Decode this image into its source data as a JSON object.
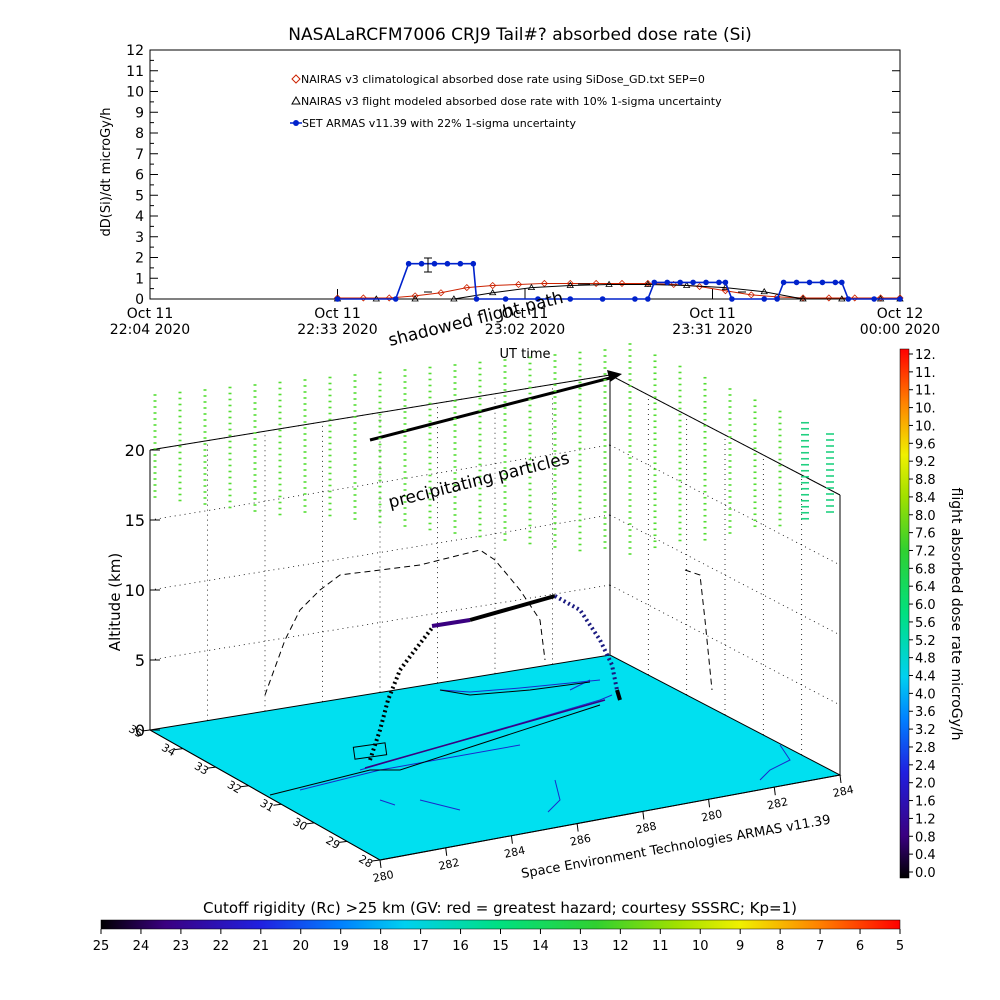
{
  "title": "NASALaRCFM7006  CRJ9 Tail#? absorbed dose rate (Si)",
  "top_chart": {
    "ylabel": "dD(Si)/dt microGy/h",
    "xlabel": "UT time",
    "yticks": [
      "0",
      "1",
      "2",
      "3",
      "4",
      "5",
      "6",
      "7",
      "8",
      "9",
      "10",
      "11",
      "12"
    ],
    "xticks": [
      {
        "line1": "Oct 11",
        "line2": "22:04 2020"
      },
      {
        "line1": "Oct 11",
        "line2": "22:33 2020"
      },
      {
        "line1": "Oct 11",
        "line2": "23:02 2020"
      },
      {
        "line1": "Oct 11",
        "line2": "23:31 2020"
      },
      {
        "line1": "Oct 12",
        "line2": "00:00 2020"
      }
    ],
    "legend": [
      "NAIRAS v3 climatological absorbed dose rate using SiDose_GD.txt SEP=0",
      "NAIRAS v3 flight modeled absorbed dose rate with 10% 1-sigma uncertainty",
      "SET ARMAS v11.39 with 22% 1-sigma uncertainty"
    ]
  },
  "chart_data": {
    "type": "line",
    "title": "NASALaRCFM7006  CRJ9 Tail#? absorbed dose rate (Si)",
    "xlabel": "UT time",
    "ylabel": "dD(Si)/dt microGy/h",
    "x_unit": "minutes after 2020-10-11 22:04 UT",
    "xlim": [
      0,
      116
    ],
    "ylim": [
      0,
      12
    ],
    "grid": false,
    "legend_position": "top-center",
    "series": [
      {
        "name": "NAIRAS v3 climatological absorbed dose rate using SiDose_GD.txt SEP=0",
        "color": "#cc2200",
        "marker": "diamond",
        "x": [
          29,
          33,
          37,
          41,
          45,
          49,
          53,
          57,
          61,
          65,
          69,
          73,
          77,
          81,
          85,
          89,
          93,
          97,
          101,
          105,
          109,
          113,
          116
        ],
        "y": [
          0.05,
          0.05,
          0.05,
          0.15,
          0.3,
          0.55,
          0.65,
          0.7,
          0.75,
          0.75,
          0.75,
          0.75,
          0.75,
          0.7,
          0.6,
          0.4,
          0.2,
          0.1,
          0.05,
          0.05,
          0.05,
          0.05,
          0.05
        ]
      },
      {
        "name": "NAIRAS v3 flight modeled absorbed dose rate with 10% 1-sigma uncertainty",
        "color": "#000000",
        "marker": "triangle",
        "x": [
          29,
          35,
          41,
          47,
          53,
          59,
          65,
          71,
          77,
          83,
          89,
          95,
          101,
          107,
          113,
          116
        ],
        "y": [
          0.0,
          0.0,
          0.0,
          0.0,
          0.3,
          0.55,
          0.65,
          0.7,
          0.7,
          0.65,
          0.55,
          0.35,
          0.0,
          0.0,
          0.0,
          0.0
        ]
      },
      {
        "name": "SET ARMAS v11.39 with 22% 1-sigma uncertainty",
        "color": "#0022cc",
        "marker": "circle",
        "x": [
          29,
          38,
          40,
          42,
          44,
          46,
          48,
          50,
          50.5,
          55,
          60,
          65,
          70,
          75,
          77,
          78,
          80,
          82,
          84,
          86,
          88,
          89,
          90,
          95,
          97,
          98,
          100,
          102,
          104,
          106,
          107,
          108,
          112,
          116
        ],
        "y": [
          0.0,
          0.0,
          1.7,
          1.7,
          1.7,
          1.7,
          1.7,
          1.7,
          0.0,
          0.0,
          0.0,
          0.0,
          0.0,
          0.0,
          0.0,
          0.8,
          0.8,
          0.8,
          0.8,
          0.8,
          0.8,
          0.8,
          0.0,
          0.0,
          0.0,
          0.8,
          0.8,
          0.8,
          0.8,
          0.8,
          0.8,
          0.0,
          0.0,
          0.0
        ]
      }
    ]
  },
  "plot3d": {
    "zlabel": "Altitude (km)",
    "zticks": [
      "0",
      "5",
      "10",
      "15",
      "20"
    ],
    "lat_ticks": [
      "35",
      "34",
      "33",
      "32",
      "31",
      "30",
      "29",
      "28"
    ],
    "lon_ticks": [
      "280",
      "282",
      "284",
      "286",
      "288",
      "280",
      "282",
      "284"
    ],
    "annotations": {
      "shadowed": "shadowed flight path",
      "precipitating": "precipitating particles"
    },
    "credit": "Space Environment Technologies ARMAS v11.39"
  },
  "colorbar_right": {
    "label": "flight absorbed dose rate microGy/h",
    "ticks": [
      "12.",
      "11.",
      "11.",
      "10.",
      "10.",
      "9.6",
      "9.2",
      "8.8",
      "8.4",
      "8.0",
      "7.6",
      "7.2",
      "6.8",
      "6.4",
      "6.0",
      "5.6",
      "5.2",
      "4.8",
      "4.4",
      "4.0",
      "3.6",
      "3.2",
      "2.8",
      "2.4",
      "2.0",
      "1.6",
      "1.2",
      "0.8",
      "0.4",
      "0.0"
    ]
  },
  "colorbar_bottom": {
    "title": "Cutoff rigidity (Rc) >25 km (GV: red = greatest hazard; courtesy SSSRC; Kp=1)",
    "ticks": [
      "25",
      "24",
      "23",
      "22",
      "21",
      "20",
      "19",
      "18",
      "17",
      "16",
      "15",
      "14",
      "13",
      "12",
      "11",
      "10",
      "9",
      "8",
      "7",
      "6",
      "5"
    ]
  },
  "colors": {
    "ocean": "#00e0f0",
    "armas": "#0022cc",
    "nairas_clim": "#cc2200",
    "precip": "#33cc22"
  }
}
